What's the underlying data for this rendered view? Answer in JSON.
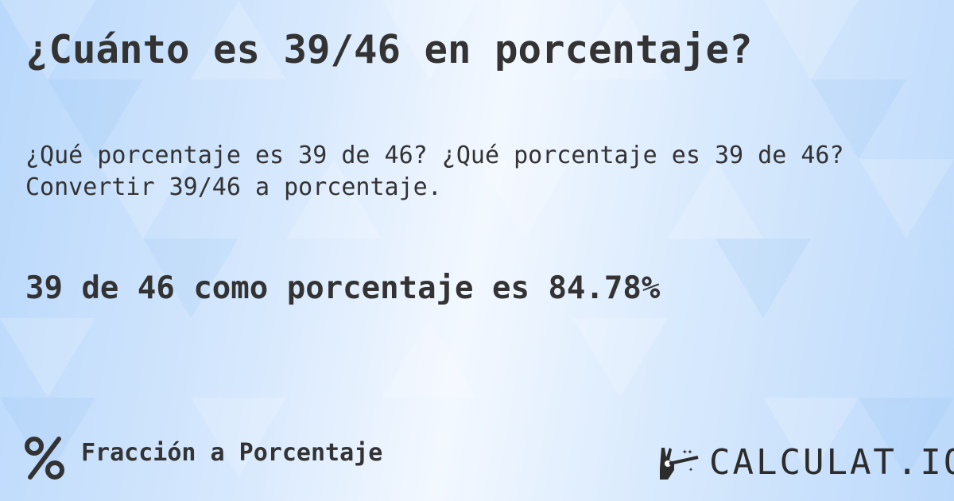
{
  "title": "¿Cuánto es 39/46 en porcentaje?",
  "subtitle_line1": "¿Qué porcentaje es 39 de 46? ¿Qué porcentaje es 39 de 46?",
  "subtitle_line2": "Convertir 39/46 a porcentaje.",
  "result": "39 de 46 como porcentaje es 84.78%",
  "footer": {
    "category_icon": "percent-icon",
    "category": "Fracción a Porcentaje",
    "logo_icon": "magic-hand-wand-icon",
    "logo_text": "CALCULAT.IO"
  },
  "colors": {
    "text": "#333333",
    "background_light": "#f3f8ff",
    "background_blue": "#b9d8fb"
  }
}
